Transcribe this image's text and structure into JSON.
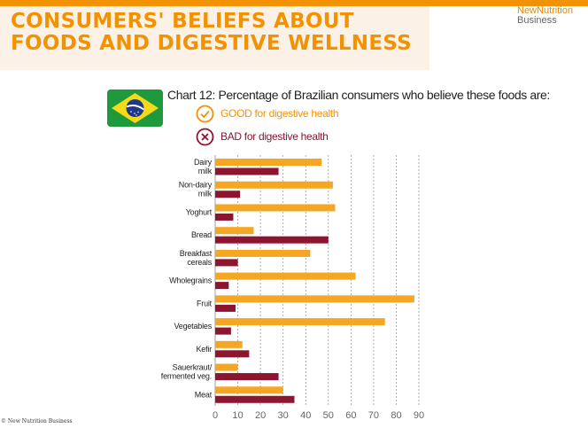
{
  "header": {
    "title": "CONSUMERS' BELIEFS ABOUT FOODS AND DIGESTIVE WELLNESS",
    "brand_line1": "NewNutrition",
    "brand_line2": "Business"
  },
  "colors": {
    "accent": "#f39200",
    "good": "#f5a623",
    "bad": "#8e1530"
  },
  "icons": {
    "flag": "brazil-flag-icon",
    "good": "check-circle-icon",
    "bad": "x-circle-icon"
  },
  "legend": {
    "good": "GOOD for digestive health",
    "bad": "BAD for digestive health"
  },
  "footer": {
    "copyright": "© New Nutrition Business"
  },
  "chart_data": {
    "type": "bar",
    "orientation": "horizontal",
    "title": "Chart 12: Percentage of Brazilian consumers who believe these foods are:",
    "categories": [
      [
        "Dairy",
        "milk"
      ],
      [
        "Non-dairy",
        "milk"
      ],
      [
        "Yoghurt"
      ],
      [
        "Bread"
      ],
      [
        "Breakfast",
        "cereals"
      ],
      [
        "Wholegrains"
      ],
      [
        "Fruit"
      ],
      [
        "Vegetables"
      ],
      [
        "Kefir"
      ],
      [
        "Sauerkraut/",
        "fermented veg."
      ],
      [
        "Meat"
      ]
    ],
    "series": [
      {
        "name": "GOOD for digestive health",
        "color": "#f5a623",
        "values": [
          47,
          52,
          53,
          17,
          42,
          62,
          88,
          75,
          12,
          10,
          30
        ]
      },
      {
        "name": "BAD for digestive health",
        "color": "#8e1530",
        "values": [
          28,
          11,
          8,
          50,
          10,
          6,
          9,
          7,
          15,
          28,
          35
        ]
      }
    ],
    "xlim": [
      0,
      90
    ],
    "xticks": [
      0,
      10,
      20,
      30,
      40,
      50,
      60,
      70,
      80,
      90
    ],
    "grid": true
  }
}
